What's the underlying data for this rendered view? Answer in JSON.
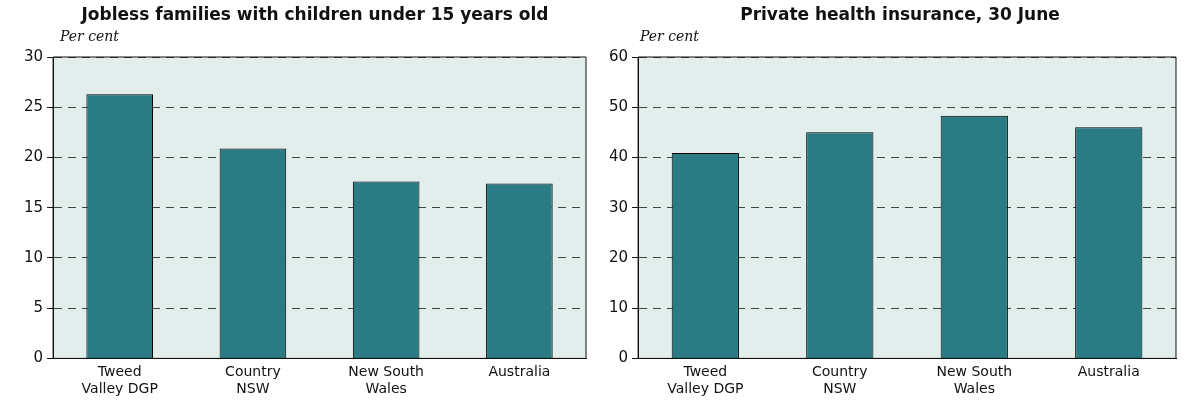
{
  "chart_data": [
    {
      "type": "bar",
      "title": "Jobless families with children under 15 years old",
      "ylabel": "Per cent",
      "categories": [
        "Tweed Valley DGP",
        "Country NSW",
        "New South Wales",
        "Australia"
      ],
      "values": [
        26.3,
        20.9,
        17.6,
        17.4
      ],
      "color": "#2a7b84",
      "ylim": [
        0,
        30
      ],
      "yticks": [
        0,
        5,
        10,
        15,
        20,
        25,
        30
      ],
      "grid": "y",
      "legend": false
    },
    {
      "type": "bar",
      "title": "Private health insurance, 30 June",
      "ylabel": "Per cent",
      "categories": [
        "Tweed Valley DGP",
        "Country NSW",
        "New South Wales",
        "Australia"
      ],
      "values": [
        40.9,
        45.0,
        48.3,
        46.0
      ],
      "color": "#2a7b84",
      "ylim": [
        0,
        60
      ],
      "yticks": [
        0,
        10,
        20,
        30,
        40,
        50,
        60
      ],
      "grid": "y",
      "legend": false
    }
  ]
}
